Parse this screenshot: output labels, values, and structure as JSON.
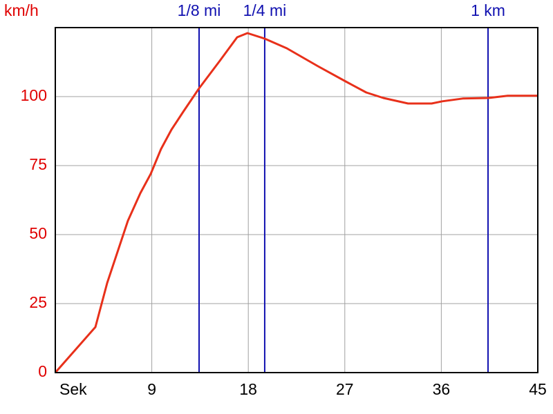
{
  "chart_data": {
    "type": "line",
    "y_label": "km/h",
    "x": [
      0,
      3.74,
      4.84,
      6.77,
      7.93,
      8.9,
      9.86,
      10.83,
      11.93,
      13.41,
      15.35,
      16.96,
      17.92,
      19.53,
      21.59,
      24.5,
      27.08,
      29.0,
      30.6,
      32.9,
      35.1,
      36.1,
      38.0,
      40.4,
      42.2,
      45
    ],
    "series": [
      {
        "color": "#e8301a",
        "values": [
          0,
          16.5,
          32.5,
          55,
          65,
          72,
          81,
          88,
          94.5,
          103,
          113,
          121.5,
          123,
          121,
          117.5,
          111,
          105.5,
          101.5,
          99.5,
          97.5,
          97.5,
          98.3,
          99.3,
          99.5,
          100.3,
          100.3
        ]
      }
    ],
    "xlim": [
      0,
      45
    ],
    "xticks": [
      {
        "value": 0,
        "label": "Sek"
      },
      9,
      18,
      27,
      36,
      45
    ],
    "ylim": [
      0,
      125
    ],
    "yticks": [
      0,
      25,
      50,
      75,
      100
    ],
    "grid": true,
    "ytick_color": "#e00000",
    "markers": [
      {
        "label": "1/8 mi",
        "x": 13.41
      },
      {
        "label": "1/4 mi",
        "x": 19.53
      },
      {
        "label": "1 km",
        "x": 40.36
      }
    ],
    "marker_color": "#1010b0"
  }
}
